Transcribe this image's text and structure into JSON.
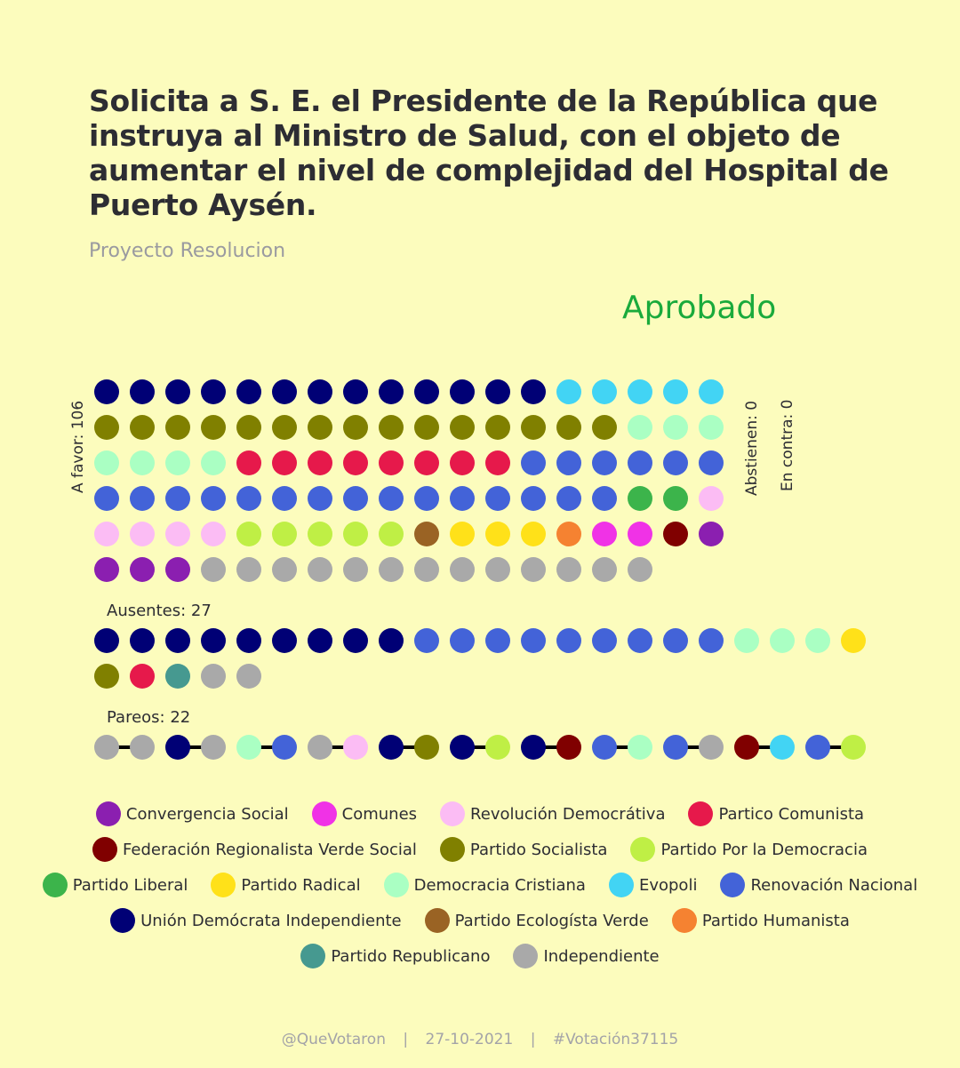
{
  "title": "Solicita a S. E. el Presidente de la República que instruya al Ministro de Salud, con el objeto de aumentar el nivel de complejidad del Hospital de Puerto Aysén.",
  "subtitle": "Proyecto Resolucion",
  "result": "Aprobado",
  "colors": {
    "result": "#1aaa3c",
    "background": "#fcfcbd",
    "text": "#2d2d33",
    "muted": "#9a9aa0"
  },
  "labels": {
    "a_favor": "A favor: 106",
    "abstienen": "Abstienen: 0",
    "en_contra": "En contra: 0",
    "ausentes": "Ausentes: 27",
    "pareos": "Pareos: 22"
  },
  "footer": {
    "handle": "@QueVotaron",
    "sep1": "|",
    "date": "27-10-2021",
    "sep2": "|",
    "hashtag": "#Votación37115"
  },
  "legend": [
    {
      "key": "CS",
      "label": "Convergencia Social",
      "color": "#8b1fb0"
    },
    {
      "key": "COM",
      "label": "Comunes",
      "color": "#f032e6"
    },
    {
      "key": "RD",
      "label": "Revolución Democrátiva",
      "color": "#fbbcf4"
    },
    {
      "key": "PC",
      "label": "Partico Comunista",
      "color": "#e6194b"
    },
    {
      "key": "FRVS",
      "label": "Federación Regionalista Verde Social",
      "color": "#800000"
    },
    {
      "key": "PS",
      "label": "Partido Socialista",
      "color": "#808000"
    },
    {
      "key": "PPD",
      "label": "Partido Por la Democracia",
      "color": "#bfef45"
    },
    {
      "key": "PL",
      "label": "Partido Liberal",
      "color": "#3cb44b"
    },
    {
      "key": "PR",
      "label": "Partido Radical",
      "color": "#ffe119"
    },
    {
      "key": "DC",
      "label": "Democracia Cristiana",
      "color": "#aaffc3"
    },
    {
      "key": "EVO",
      "label": "Evopoli",
      "color": "#42d4f4"
    },
    {
      "key": "RN",
      "label": "Renovación Nacional",
      "color": "#4363d8"
    },
    {
      "key": "UDI",
      "label": "Unión Demócrata Independiente",
      "color": "#000075"
    },
    {
      "key": "PEV",
      "label": "Partido Ecologísta Verde",
      "color": "#9a6324"
    },
    {
      "key": "PH",
      "label": "Partido Humanista",
      "color": "#f58231"
    },
    {
      "key": "REP",
      "label": "Partido Republicano",
      "color": "#469990"
    },
    {
      "key": "IND",
      "label": "Independiente",
      "color": "#a9a9a9"
    }
  ],
  "chart_data": {
    "type": "waffle",
    "groups": [
      {
        "name": "A favor",
        "count": 106,
        "members": [
          "UDI",
          "UDI",
          "UDI",
          "UDI",
          "UDI",
          "UDI",
          "UDI",
          "UDI",
          "UDI",
          "UDI",
          "UDI",
          "UDI",
          "UDI",
          "EVO",
          "EVO",
          "EVO",
          "EVO",
          "EVO",
          "PS",
          "PS",
          "PS",
          "PS",
          "PS",
          "PS",
          "PS",
          "PS",
          "PS",
          "PS",
          "PS",
          "PS",
          "PS",
          "PS",
          "PS",
          "DC",
          "DC",
          "DC",
          "DC",
          "DC",
          "DC",
          "DC",
          "PC",
          "PC",
          "PC",
          "PC",
          "PC",
          "PC",
          "PC",
          "PC",
          "RN",
          "RN",
          "RN",
          "RN",
          "RN",
          "RN",
          "RN",
          "RN",
          "RN",
          "RN",
          "RN",
          "RN",
          "RN",
          "RN",
          "RN",
          "RN",
          "RN",
          "RN",
          "RN",
          "RN",
          "RN",
          "PL",
          "PL",
          "RD",
          "RD",
          "RD",
          "RD",
          "RD",
          "PPD",
          "PPD",
          "PPD",
          "PPD",
          "PPD",
          "PEV",
          "PR",
          "PR",
          "PR",
          "PH",
          "COM",
          "COM",
          "FRVS",
          "CS",
          "CS",
          "CS",
          "CS",
          "IND",
          "IND",
          "IND",
          "IND",
          "IND",
          "IND",
          "IND",
          "IND",
          "IND",
          "IND",
          "IND",
          "IND",
          "IND"
        ]
      },
      {
        "name": "Abstienen",
        "count": 0,
        "members": []
      },
      {
        "name": "En contra",
        "count": 0,
        "members": []
      },
      {
        "name": "Ausentes",
        "count": 27,
        "members": [
          "UDI",
          "UDI",
          "UDI",
          "UDI",
          "UDI",
          "UDI",
          "UDI",
          "UDI",
          "UDI",
          "RN",
          "RN",
          "RN",
          "RN",
          "RN",
          "RN",
          "RN",
          "RN",
          "RN",
          "DC",
          "DC",
          "DC",
          "PR",
          "PS",
          "PC",
          "REP",
          "IND",
          "IND"
        ]
      },
      {
        "name": "Pareos",
        "count": 22,
        "pairs": [
          [
            "IND",
            "IND"
          ],
          [
            "UDI",
            "IND"
          ],
          [
            "DC",
            "RN"
          ],
          [
            "IND",
            "RD"
          ],
          [
            "UDI",
            "PS"
          ],
          [
            "UDI",
            "PPD"
          ],
          [
            "UDI",
            "FRVS"
          ],
          [
            "RN",
            "DC"
          ],
          [
            "RN",
            "IND"
          ],
          [
            "FRVS",
            "EVO"
          ],
          [
            "RN",
            "PPD"
          ]
        ]
      }
    ]
  }
}
